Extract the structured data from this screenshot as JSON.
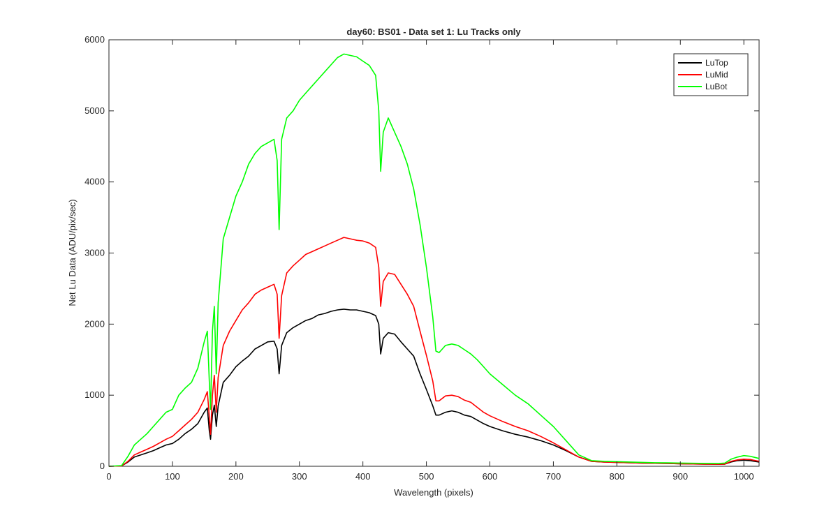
{
  "chart_data": {
    "type": "line",
    "title": "day60: BS01 - Data set 1: Lu Tracks only",
    "xlabel": "Wavelength (pixels)",
    "ylabel": "Net Lu Data (ADU/pix/sec)",
    "xlim": [
      0,
      1024
    ],
    "ylim": [
      0,
      6000
    ],
    "xticks": [
      0,
      100,
      200,
      300,
      400,
      500,
      600,
      700,
      800,
      900,
      1000
    ],
    "yticks": [
      0,
      1000,
      2000,
      3000,
      4000,
      5000,
      6000
    ],
    "grid": false,
    "legend_position": "top-right",
    "series": [
      {
        "name": "LuTop",
        "color": "#000000",
        "points": [
          [
            0,
            0
          ],
          [
            20,
            5
          ],
          [
            30,
            60
          ],
          [
            40,
            130
          ],
          [
            50,
            160
          ],
          [
            60,
            190
          ],
          [
            70,
            220
          ],
          [
            80,
            260
          ],
          [
            90,
            300
          ],
          [
            100,
            320
          ],
          [
            110,
            380
          ],
          [
            120,
            460
          ],
          [
            130,
            520
          ],
          [
            140,
            600
          ],
          [
            150,
            760
          ],
          [
            155,
            820
          ],
          [
            158,
            500
          ],
          [
            160,
            380
          ],
          [
            163,
            720
          ],
          [
            166,
            860
          ],
          [
            169,
            560
          ],
          [
            172,
            850
          ],
          [
            180,
            1180
          ],
          [
            190,
            1280
          ],
          [
            200,
            1400
          ],
          [
            210,
            1480
          ],
          [
            220,
            1550
          ],
          [
            230,
            1650
          ],
          [
            240,
            1700
          ],
          [
            250,
            1750
          ],
          [
            260,
            1760
          ],
          [
            265,
            1650
          ],
          [
            268,
            1300
          ],
          [
            272,
            1700
          ],
          [
            280,
            1880
          ],
          [
            290,
            1950
          ],
          [
            300,
            2000
          ],
          [
            310,
            2050
          ],
          [
            320,
            2080
          ],
          [
            330,
            2130
          ],
          [
            340,
            2150
          ],
          [
            350,
            2180
          ],
          [
            360,
            2200
          ],
          [
            370,
            2210
          ],
          [
            380,
            2200
          ],
          [
            390,
            2200
          ],
          [
            400,
            2180
          ],
          [
            410,
            2160
          ],
          [
            420,
            2120
          ],
          [
            425,
            2000
          ],
          [
            428,
            1580
          ],
          [
            432,
            1800
          ],
          [
            440,
            1880
          ],
          [
            450,
            1860
          ],
          [
            460,
            1750
          ],
          [
            470,
            1650
          ],
          [
            480,
            1550
          ],
          [
            490,
            1300
          ],
          [
            500,
            1080
          ],
          [
            510,
            850
          ],
          [
            515,
            720
          ],
          [
            520,
            720
          ],
          [
            530,
            760
          ],
          [
            540,
            780
          ],
          [
            550,
            760
          ],
          [
            560,
            720
          ],
          [
            570,
            700
          ],
          [
            580,
            650
          ],
          [
            590,
            600
          ],
          [
            600,
            560
          ],
          [
            620,
            500
          ],
          [
            640,
            450
          ],
          [
            660,
            410
          ],
          [
            680,
            360
          ],
          [
            700,
            300
          ],
          [
            720,
            220
          ],
          [
            740,
            130
          ],
          [
            760,
            70
          ],
          [
            780,
            60
          ],
          [
            800,
            55
          ],
          [
            820,
            50
          ],
          [
            840,
            45
          ],
          [
            860,
            42
          ],
          [
            880,
            40
          ],
          [
            900,
            35
          ],
          [
            920,
            32
          ],
          [
            940,
            30
          ],
          [
            960,
            28
          ],
          [
            970,
            30
          ],
          [
            980,
            60
          ],
          [
            990,
            80
          ],
          [
            1000,
            85
          ],
          [
            1010,
            80
          ],
          [
            1024,
            60
          ]
        ]
      },
      {
        "name": "LuMid",
        "color": "#ff0000",
        "points": [
          [
            0,
            0
          ],
          [
            20,
            5
          ],
          [
            30,
            70
          ],
          [
            40,
            160
          ],
          [
            50,
            200
          ],
          [
            60,
            240
          ],
          [
            70,
            280
          ],
          [
            80,
            330
          ],
          [
            90,
            380
          ],
          [
            100,
            420
          ],
          [
            110,
            500
          ],
          [
            120,
            580
          ],
          [
            130,
            660
          ],
          [
            140,
            760
          ],
          [
            150,
            940
          ],
          [
            155,
            1050
          ],
          [
            158,
            700
          ],
          [
            160,
            450
          ],
          [
            163,
            1000
          ],
          [
            166,
            1280
          ],
          [
            169,
            760
          ],
          [
            172,
            1250
          ],
          [
            180,
            1700
          ],
          [
            190,
            1900
          ],
          [
            200,
            2050
          ],
          [
            210,
            2200
          ],
          [
            220,
            2300
          ],
          [
            230,
            2420
          ],
          [
            240,
            2480
          ],
          [
            250,
            2520
          ],
          [
            260,
            2560
          ],
          [
            265,
            2420
          ],
          [
            268,
            1800
          ],
          [
            272,
            2400
          ],
          [
            280,
            2720
          ],
          [
            290,
            2820
          ],
          [
            300,
            2900
          ],
          [
            310,
            2980
          ],
          [
            320,
            3020
          ],
          [
            330,
            3060
          ],
          [
            340,
            3100
          ],
          [
            350,
            3140
          ],
          [
            360,
            3180
          ],
          [
            370,
            3220
          ],
          [
            380,
            3200
          ],
          [
            390,
            3180
          ],
          [
            400,
            3170
          ],
          [
            410,
            3140
          ],
          [
            420,
            3080
          ],
          [
            425,
            2800
          ],
          [
            428,
            2250
          ],
          [
            432,
            2600
          ],
          [
            440,
            2720
          ],
          [
            450,
            2700
          ],
          [
            460,
            2560
          ],
          [
            470,
            2420
          ],
          [
            480,
            2250
          ],
          [
            490,
            1900
          ],
          [
            500,
            1560
          ],
          [
            510,
            1200
          ],
          [
            515,
            920
          ],
          [
            520,
            920
          ],
          [
            530,
            990
          ],
          [
            540,
            1000
          ],
          [
            550,
            980
          ],
          [
            560,
            930
          ],
          [
            570,
            900
          ],
          [
            580,
            830
          ],
          [
            590,
            760
          ],
          [
            600,
            710
          ],
          [
            620,
            630
          ],
          [
            640,
            560
          ],
          [
            660,
            500
          ],
          [
            680,
            420
          ],
          [
            700,
            330
          ],
          [
            720,
            230
          ],
          [
            740,
            130
          ],
          [
            760,
            70
          ],
          [
            780,
            60
          ],
          [
            800,
            55
          ],
          [
            820,
            50
          ],
          [
            840,
            45
          ],
          [
            860,
            42
          ],
          [
            880,
            40
          ],
          [
            900,
            35
          ],
          [
            920,
            32
          ],
          [
            940,
            30
          ],
          [
            960,
            28
          ],
          [
            970,
            30
          ],
          [
            980,
            70
          ],
          [
            990,
            90
          ],
          [
            1000,
            100
          ],
          [
            1010,
            95
          ],
          [
            1024,
            70
          ]
        ]
      },
      {
        "name": "LuBot",
        "color": "#00ff00",
        "points": [
          [
            0,
            0
          ],
          [
            20,
            10
          ],
          [
            30,
            140
          ],
          [
            40,
            300
          ],
          [
            50,
            380
          ],
          [
            60,
            460
          ],
          [
            70,
            560
          ],
          [
            80,
            660
          ],
          [
            90,
            760
          ],
          [
            100,
            800
          ],
          [
            110,
            1000
          ],
          [
            120,
            1100
          ],
          [
            130,
            1180
          ],
          [
            140,
            1380
          ],
          [
            150,
            1750
          ],
          [
            155,
            1900
          ],
          [
            158,
            1200
          ],
          [
            160,
            800
          ],
          [
            163,
            1900
          ],
          [
            166,
            2250
          ],
          [
            169,
            1300
          ],
          [
            172,
            2300
          ],
          [
            180,
            3200
          ],
          [
            190,
            3500
          ],
          [
            200,
            3800
          ],
          [
            210,
            4000
          ],
          [
            220,
            4250
          ],
          [
            230,
            4400
          ],
          [
            240,
            4500
          ],
          [
            250,
            4550
          ],
          [
            260,
            4600
          ],
          [
            265,
            4300
          ],
          [
            268,
            3330
          ],
          [
            272,
            4600
          ],
          [
            280,
            4900
          ],
          [
            290,
            5000
          ],
          [
            300,
            5150
          ],
          [
            310,
            5250
          ],
          [
            320,
            5350
          ],
          [
            330,
            5450
          ],
          [
            340,
            5550
          ],
          [
            350,
            5650
          ],
          [
            360,
            5750
          ],
          [
            370,
            5800
          ],
          [
            380,
            5780
          ],
          [
            390,
            5760
          ],
          [
            400,
            5700
          ],
          [
            410,
            5640
          ],
          [
            420,
            5500
          ],
          [
            425,
            5000
          ],
          [
            428,
            4150
          ],
          [
            432,
            4700
          ],
          [
            440,
            4900
          ],
          [
            450,
            4700
          ],
          [
            460,
            4500
          ],
          [
            470,
            4250
          ],
          [
            480,
            3900
          ],
          [
            490,
            3400
          ],
          [
            500,
            2800
          ],
          [
            510,
            2100
          ],
          [
            515,
            1620
          ],
          [
            520,
            1600
          ],
          [
            530,
            1700
          ],
          [
            540,
            1720
          ],
          [
            550,
            1700
          ],
          [
            560,
            1640
          ],
          [
            570,
            1580
          ],
          [
            580,
            1500
          ],
          [
            590,
            1400
          ],
          [
            600,
            1300
          ],
          [
            620,
            1150
          ],
          [
            640,
            1000
          ],
          [
            660,
            880
          ],
          [
            680,
            720
          ],
          [
            700,
            560
          ],
          [
            720,
            360
          ],
          [
            740,
            160
          ],
          [
            760,
            80
          ],
          [
            780,
            70
          ],
          [
            800,
            65
          ],
          [
            820,
            60
          ],
          [
            840,
            55
          ],
          [
            860,
            50
          ],
          [
            880,
            48
          ],
          [
            900,
            45
          ],
          [
            920,
            42
          ],
          [
            940,
            40
          ],
          [
            960,
            38
          ],
          [
            970,
            45
          ],
          [
            980,
            100
          ],
          [
            990,
            130
          ],
          [
            1000,
            150
          ],
          [
            1010,
            140
          ],
          [
            1024,
            110
          ]
        ]
      }
    ]
  }
}
